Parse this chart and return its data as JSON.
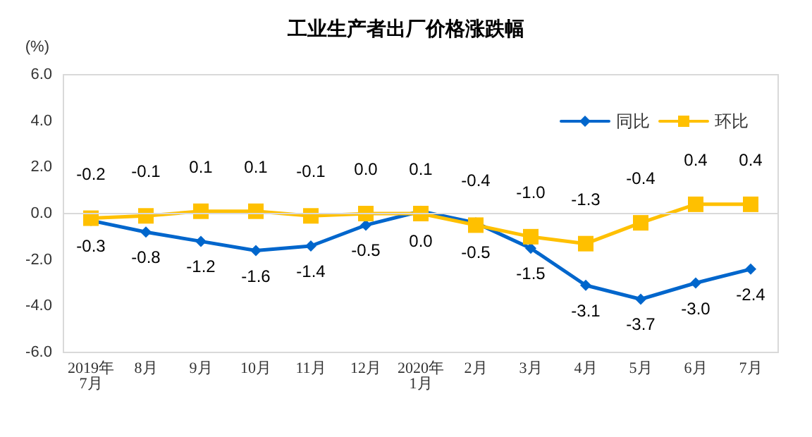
{
  "chart_data": {
    "type": "line",
    "title": "工业生产者出厂价格涨跌幅",
    "ylabel": "(%)",
    "categories": [
      "2019年\n7月",
      "8月",
      "9月",
      "10月",
      "11月",
      "12月",
      "2020年\n1月",
      "2月",
      "3月",
      "4月",
      "5月",
      "6月",
      "7月"
    ],
    "series": [
      {
        "name": "同比",
        "color": "#0066cc",
        "marker": "diamond",
        "values": [
          -0.3,
          -0.8,
          -1.2,
          -1.6,
          -1.4,
          -0.5,
          0.1,
          -0.4,
          -1.5,
          -3.1,
          -3.7,
          -3.0,
          -2.4
        ],
        "value_labels": [
          "-0.3",
          "-0.8",
          "-1.2",
          "-1.6",
          "-1.4",
          "-0.5",
          "0.1",
          "-0.4",
          "-1.5",
          "-3.1",
          "-3.7",
          "-3.0",
          "-2.4"
        ]
      },
      {
        "name": "环比",
        "color": "#ffc000",
        "marker": "square",
        "values": [
          -0.2,
          -0.1,
          0.1,
          0.1,
          -0.1,
          0.0,
          0.0,
          -0.5,
          -1.0,
          -1.3,
          -0.4,
          0.4,
          0.4
        ],
        "value_labels": [
          "-0.2",
          "-0.1",
          "0.1",
          "0.1",
          "-0.1",
          "0.0",
          "0.0",
          "-0.5",
          "-1.0",
          "-1.3",
          "-0.4",
          "0.4",
          "0.4"
        ]
      }
    ],
    "ylim": [
      -6,
      6
    ],
    "yticks": [
      {
        "value": -6,
        "label": "-6.0"
      },
      {
        "value": -4,
        "label": "-4.0"
      },
      {
        "value": -2,
        "label": "-2.0"
      },
      {
        "value": 0,
        "label": "0.0"
      },
      {
        "value": 2,
        "label": "2.0"
      },
      {
        "value": 4,
        "label": "4.0"
      },
      {
        "value": 6,
        "label": "6.0"
      }
    ],
    "ref_lines": [
      {
        "axis": "y",
        "value": 0,
        "color": "#d9d9d9"
      }
    ],
    "legend": "top right",
    "line_style": "solid"
  }
}
